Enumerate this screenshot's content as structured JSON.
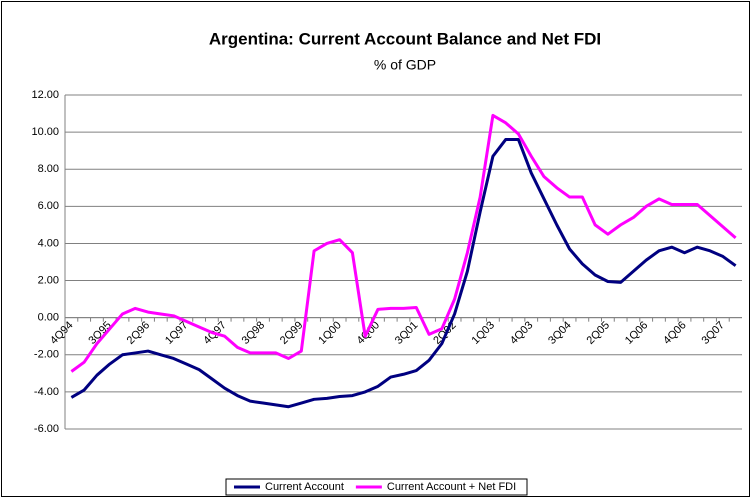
{
  "chart_data": {
    "type": "line",
    "title": "Argentina: Current Account Balance and Net FDI",
    "subtitle": "% of GDP",
    "categories": [
      "4Q94",
      null,
      null,
      "3Q95",
      null,
      null,
      "2Q96",
      null,
      null,
      "1Q97",
      null,
      null,
      "4Q97",
      null,
      null,
      "3Q98",
      null,
      null,
      "2Q99",
      null,
      null,
      "1Q00",
      null,
      null,
      "4Q00",
      null,
      null,
      "3Q01",
      null,
      null,
      "2Q02",
      null,
      null,
      "1Q03",
      null,
      null,
      "4Q03",
      null,
      null,
      "3Q04",
      null,
      null,
      "2Q05",
      null,
      null,
      "1Q06",
      null,
      null,
      "4Q06",
      null,
      null,
      "3Q07",
      null
    ],
    "series": [
      {
        "name": "Current Account",
        "color": "#000080",
        "values": [
          -4.3,
          -3.9,
          -3.1,
          -2.5,
          -2.0,
          -1.9,
          -1.8,
          -2.0,
          -2.2,
          -2.5,
          -2.8,
          -3.3,
          -3.8,
          -4.2,
          -4.5,
          -4.6,
          -4.7,
          -4.8,
          -4.6,
          -4.4,
          -4.35,
          -4.25,
          -4.2,
          -4.0,
          -3.7,
          -3.2,
          -3.05,
          -2.85,
          -2.3,
          -1.4,
          0.2,
          2.5,
          5.7,
          8.7,
          9.6,
          9.6,
          7.8,
          6.4,
          5.0,
          3.7,
          2.9,
          2.3,
          1.95,
          1.9,
          2.5,
          3.1,
          3.6,
          3.8,
          3.5,
          3.8,
          3.6,
          3.3,
          2.8
        ]
      },
      {
        "name": "Current Account + Net FDI",
        "color": "#ff00ff",
        "values": [
          -2.9,
          -2.4,
          -1.4,
          -0.6,
          0.2,
          0.5,
          0.3,
          0.2,
          0.1,
          -0.2,
          -0.5,
          -0.8,
          -1.0,
          -1.6,
          -1.9,
          -1.9,
          -1.9,
          -2.2,
          -1.8,
          3.6,
          4.0,
          4.2,
          3.5,
          -1.0,
          0.45,
          0.5,
          0.5,
          0.55,
          -0.9,
          -0.6,
          1.0,
          3.5,
          6.5,
          10.9,
          10.5,
          9.9,
          8.7,
          7.6,
          7.0,
          6.5,
          6.5,
          5.0,
          4.5,
          5.0,
          5.4,
          6.0,
          6.4,
          6.1,
          6.1,
          6.1,
          5.5,
          4.9,
          4.3
        ]
      }
    ],
    "ylim": [
      -6,
      12
    ],
    "yticks": [
      {
        "value": -6,
        "label": "-6.00"
      },
      {
        "value": -4,
        "label": "-4.00"
      },
      {
        "value": -2,
        "label": "-2.00"
      },
      {
        "value": 0,
        "label": "0.00"
      },
      {
        "value": 2,
        "label": "2.00"
      },
      {
        "value": 4,
        "label": "4.00"
      },
      {
        "value": 6,
        "label": "6.00"
      },
      {
        "value": 8,
        "label": "8.00"
      },
      {
        "value": 10,
        "label": "10.00"
      },
      {
        "value": 12,
        "label": "12.00"
      }
    ],
    "grid": true,
    "legend": "bottom"
  }
}
